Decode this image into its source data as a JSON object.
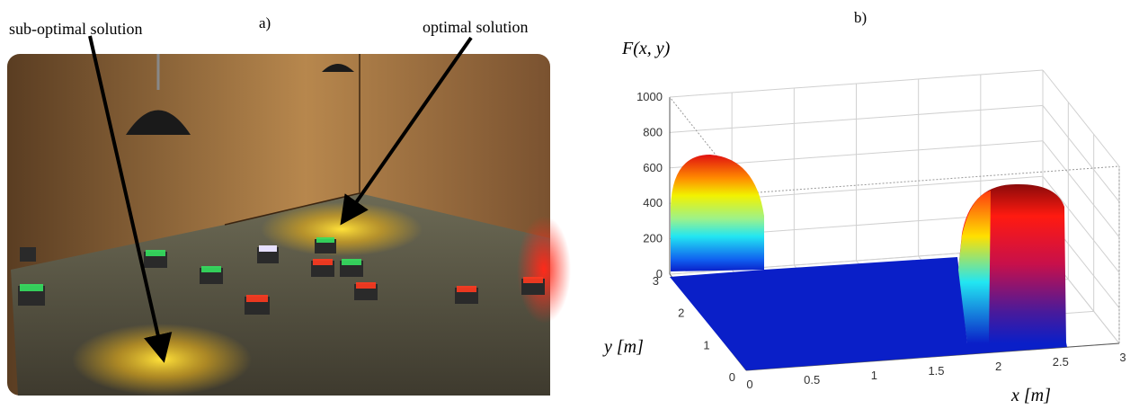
{
  "panel_a": {
    "label": "a)",
    "annotations": [
      "sub-optimal solution",
      "optimal solution"
    ]
  },
  "panel_b": {
    "label": "b)",
    "z_label": "F(x, y)",
    "x_label": "x [m]",
    "y_label": "y [m]",
    "z_ticks": [
      0,
      200,
      400,
      600,
      800,
      1000
    ],
    "x_ticks": [
      0,
      0.5,
      1,
      1.5,
      2,
      2.5,
      3
    ],
    "y_ticks": [
      0,
      1,
      2,
      3
    ]
  }
}
